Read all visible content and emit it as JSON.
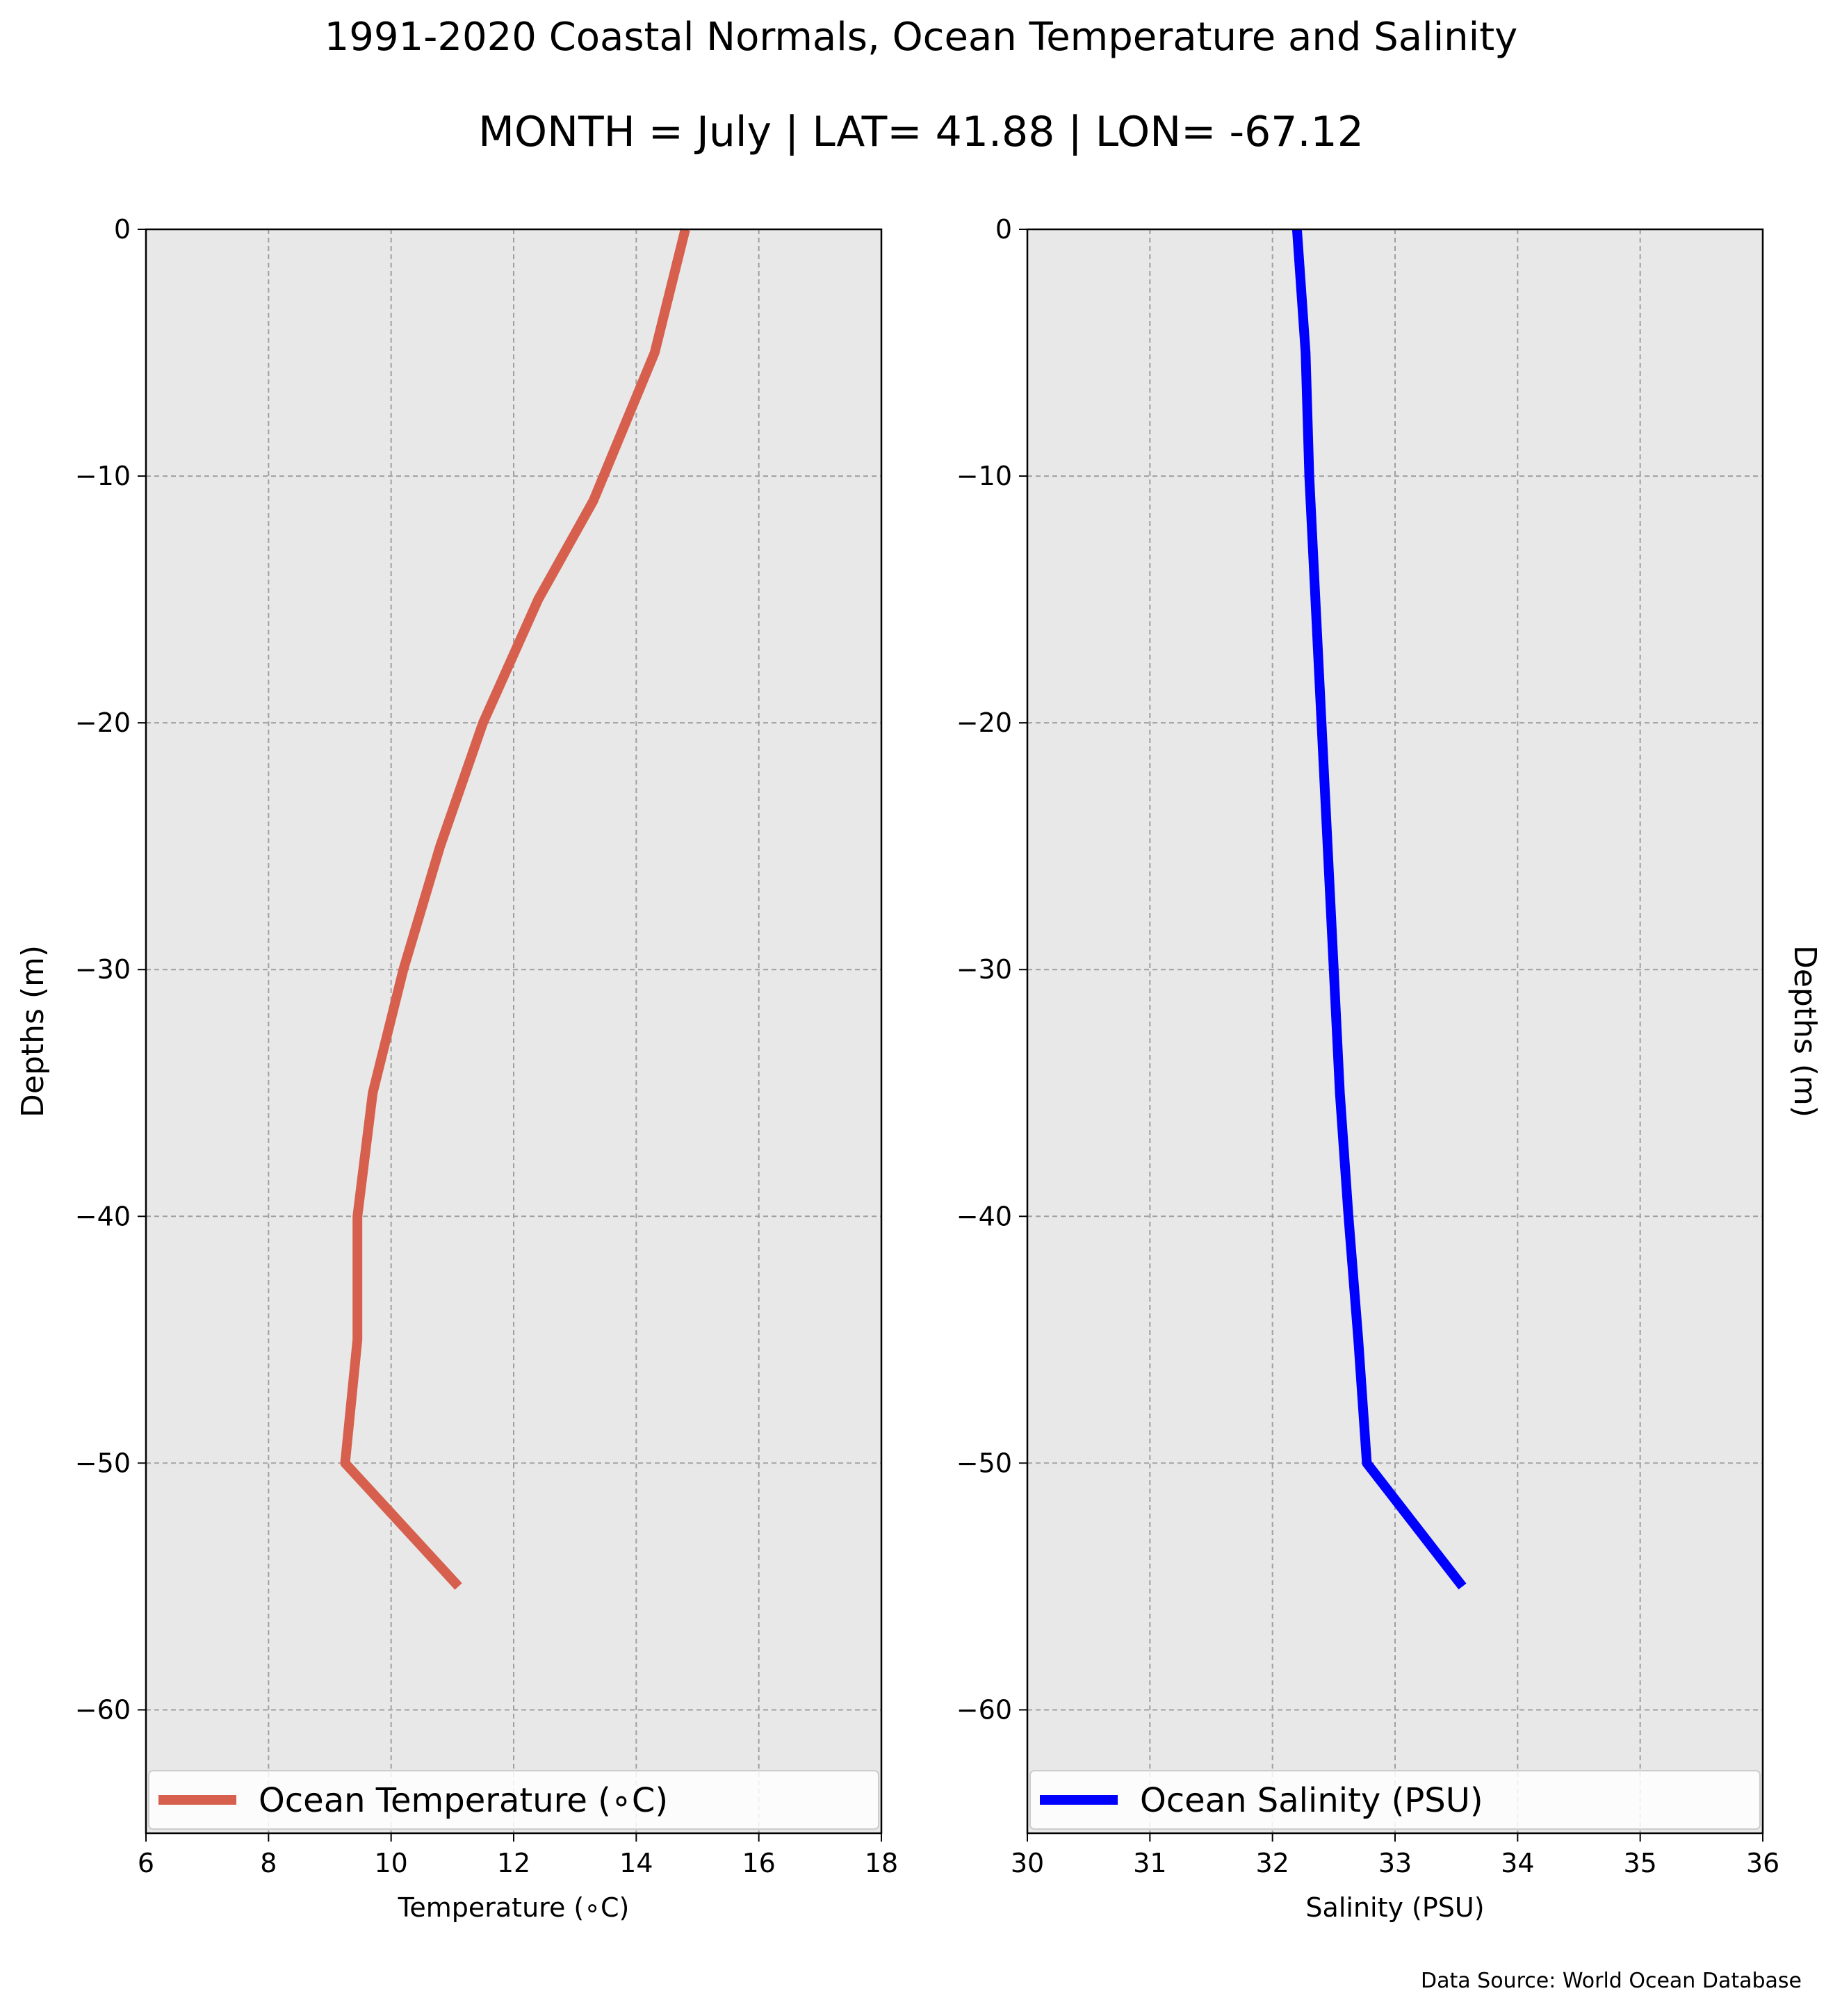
{
  "figure": {
    "title": "1991-2020 Coastal Normals, Ocean Temperature and Salinity",
    "subtitle": "MONTH = July | LAT= 41.88 | LON= -67.12",
    "source": "Data Source: World Ocean Database"
  },
  "chart_data": [
    {
      "type": "line",
      "xlabel": "Temperature (∘C)",
      "ylabel": "Depths (m)",
      "ylabel_side": "left",
      "xlim": [
        6,
        18
      ],
      "ylim": [
        -65,
        0
      ],
      "xticks": [
        6,
        8,
        10,
        12,
        14,
        16,
        18
      ],
      "xtick_labels": [
        "6",
        "8",
        "10",
        "12",
        "14",
        "16",
        "18"
      ],
      "yticks": [
        0,
        -10,
        -20,
        -30,
        -40,
        -50,
        -60
      ],
      "ytick_labels": [
        "0",
        "−10",
        "−20",
        "−30",
        "−40",
        "−50",
        "−60"
      ],
      "grid": true,
      "legend_position": "bottom",
      "series": [
        {
          "name": "Ocean Temperature (∘C)",
          "color": "#d6604d",
          "points": [
            {
              "x": 14.8,
              "y": 0
            },
            {
              "x": 14.3,
              "y": -5
            },
            {
              "x": 13.3,
              "y": -11
            },
            {
              "x": 12.4,
              "y": -15
            },
            {
              "x": 11.5,
              "y": -20
            },
            {
              "x": 10.8,
              "y": -25
            },
            {
              "x": 10.2,
              "y": -30
            },
            {
              "x": 9.7,
              "y": -35
            },
            {
              "x": 9.45,
              "y": -40
            },
            {
              "x": 9.45,
              "y": -45
            },
            {
              "x": 9.25,
              "y": -50
            },
            {
              "x": 11.1,
              "y": -55
            }
          ]
        }
      ]
    },
    {
      "type": "line",
      "xlabel": "Salinity (PSU)",
      "ylabel": "Depths (m)",
      "ylabel_side": "right",
      "xlim": [
        30,
        36
      ],
      "ylim": [
        -65,
        0
      ],
      "xticks": [
        30,
        31,
        32,
        33,
        34,
        35,
        36
      ],
      "xtick_labels": [
        "30",
        "31",
        "32",
        "33",
        "34",
        "35",
        "36"
      ],
      "yticks": [
        0,
        -10,
        -20,
        -30,
        -40,
        -50,
        -60
      ],
      "ytick_labels": [
        "0",
        "−10",
        "−20",
        "−30",
        "−40",
        "−50",
        "−60"
      ],
      "grid": true,
      "legend_position": "bottom",
      "series": [
        {
          "name": "Ocean Salinity (PSU)",
          "color": "#0000ff",
          "points": [
            {
              "x": 32.2,
              "y": 0
            },
            {
              "x": 32.27,
              "y": -5
            },
            {
              "x": 32.3,
              "y": -10
            },
            {
              "x": 32.35,
              "y": -15
            },
            {
              "x": 32.4,
              "y": -20
            },
            {
              "x": 32.45,
              "y": -25
            },
            {
              "x": 32.5,
              "y": -30
            },
            {
              "x": 32.55,
              "y": -35
            },
            {
              "x": 32.62,
              "y": -40
            },
            {
              "x": 32.7,
              "y": -45
            },
            {
              "x": 32.77,
              "y": -50
            },
            {
              "x": 33.55,
              "y": -55
            }
          ]
        }
      ]
    }
  ]
}
